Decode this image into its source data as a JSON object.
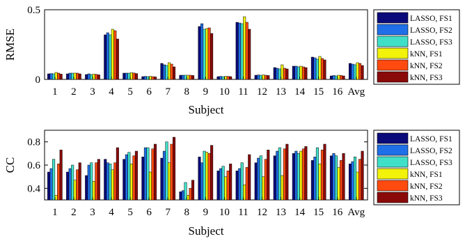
{
  "colors": {
    "LASSO, FS1": "#0a0a7a",
    "LASSO, FS2": "#1f6fe8",
    "LASSO, FS3": "#40e0c8",
    "kNN, FS1": "#f2f20a",
    "kNN, FS2": "#ff4a10",
    "kNN, FS3": "#8a0a0a"
  },
  "chart_data": [
    {
      "type": "bar",
      "ylabel": "RMSE",
      "xlabel": "Subject",
      "ylim": [
        0,
        0.5
      ],
      "yticks": [
        "0",
        "0.5"
      ],
      "categories": [
        "1",
        "2",
        "3",
        "4",
        "5",
        "6",
        "7",
        "8",
        "9",
        "10",
        "11",
        "12",
        "13",
        "14",
        "15",
        "16",
        "Avg"
      ],
      "legend_placement": "outside-right",
      "series": [
        {
          "name": "LASSO, FS1",
          "values": [
            0.04,
            0.04,
            0.035,
            0.32,
            0.045,
            0.02,
            0.115,
            0.03,
            0.38,
            0.02,
            0.41,
            0.03,
            0.085,
            0.095,
            0.16,
            0.025,
            0.115
          ]
        },
        {
          "name": "LASSO, FS2",
          "values": [
            0.042,
            0.045,
            0.04,
            0.335,
            0.045,
            0.022,
            0.105,
            0.03,
            0.4,
            0.022,
            0.405,
            0.032,
            0.08,
            0.095,
            0.155,
            0.028,
            0.11
          ]
        },
        {
          "name": "LASSO, FS3",
          "values": [
            0.04,
            0.045,
            0.035,
            0.32,
            0.045,
            0.02,
            0.1,
            0.03,
            0.36,
            0.02,
            0.4,
            0.03,
            0.075,
            0.09,
            0.145,
            0.025,
            0.105
          ]
        },
        {
          "name": "kNN, FS1",
          "values": [
            0.05,
            0.045,
            0.038,
            0.36,
            0.048,
            0.022,
            0.12,
            0.03,
            0.365,
            0.022,
            0.45,
            0.032,
            0.105,
            0.095,
            0.165,
            0.03,
            0.12
          ]
        },
        {
          "name": "kNN, FS2",
          "values": [
            0.045,
            0.045,
            0.036,
            0.35,
            0.046,
            0.02,
            0.11,
            0.03,
            0.37,
            0.022,
            0.41,
            0.03,
            0.08,
            0.09,
            0.15,
            0.028,
            0.115
          ]
        },
        {
          "name": "kNN, FS3",
          "values": [
            0.038,
            0.04,
            0.033,
            0.29,
            0.042,
            0.018,
            0.09,
            0.028,
            0.33,
            0.02,
            0.36,
            0.028,
            0.075,
            0.085,
            0.14,
            0.025,
            0.1
          ]
        }
      ]
    },
    {
      "type": "bar",
      "ylabel": "CC",
      "xlabel": "Subject",
      "ylim": [
        0.3,
        0.9
      ],
      "yticks": [
        "0.4",
        "0.6",
        "0.8"
      ],
      "categories": [
        "1",
        "2",
        "3",
        "4",
        "5",
        "6",
        "7",
        "8",
        "9",
        "10",
        "11",
        "12",
        "13",
        "14",
        "15",
        "16",
        "Avg"
      ],
      "legend_placement": "outside-right",
      "series": [
        {
          "name": "LASSO, FS1",
          "values": [
            0.54,
            0.54,
            0.51,
            0.65,
            0.65,
            0.67,
            0.66,
            0.37,
            0.67,
            0.55,
            0.55,
            0.62,
            0.68,
            0.7,
            0.64,
            0.68,
            0.61
          ]
        },
        {
          "name": "LASSO, FS2",
          "values": [
            0.57,
            0.57,
            0.6,
            0.62,
            0.69,
            0.75,
            0.72,
            0.38,
            0.62,
            0.57,
            0.57,
            0.66,
            0.72,
            0.72,
            0.67,
            0.7,
            0.63
          ]
        },
        {
          "name": "LASSO, FS3",
          "values": [
            0.65,
            0.6,
            0.62,
            0.61,
            0.71,
            0.75,
            0.8,
            0.45,
            0.72,
            0.59,
            0.62,
            0.68,
            0.75,
            0.7,
            0.75,
            0.68,
            0.67
          ]
        },
        {
          "name": "kNN, FS1",
          "values": [
            0.34,
            0.47,
            0.46,
            0.56,
            0.61,
            0.54,
            0.62,
            0.34,
            0.71,
            0.5,
            0.43,
            0.5,
            0.51,
            0.72,
            0.61,
            0.58,
            0.54
          ]
        },
        {
          "name": "kNN, FS2",
          "values": [
            0.61,
            0.56,
            0.62,
            0.62,
            0.68,
            0.74,
            0.78,
            0.4,
            0.7,
            0.55,
            0.58,
            0.65,
            0.74,
            0.74,
            0.73,
            0.64,
            0.65
          ]
        },
        {
          "name": "kNN, FS3",
          "values": [
            0.73,
            0.62,
            0.65,
            0.75,
            0.72,
            0.78,
            0.84,
            0.47,
            0.77,
            0.61,
            0.69,
            0.73,
            0.78,
            0.76,
            0.78,
            0.7,
            0.72
          ]
        }
      ]
    }
  ]
}
